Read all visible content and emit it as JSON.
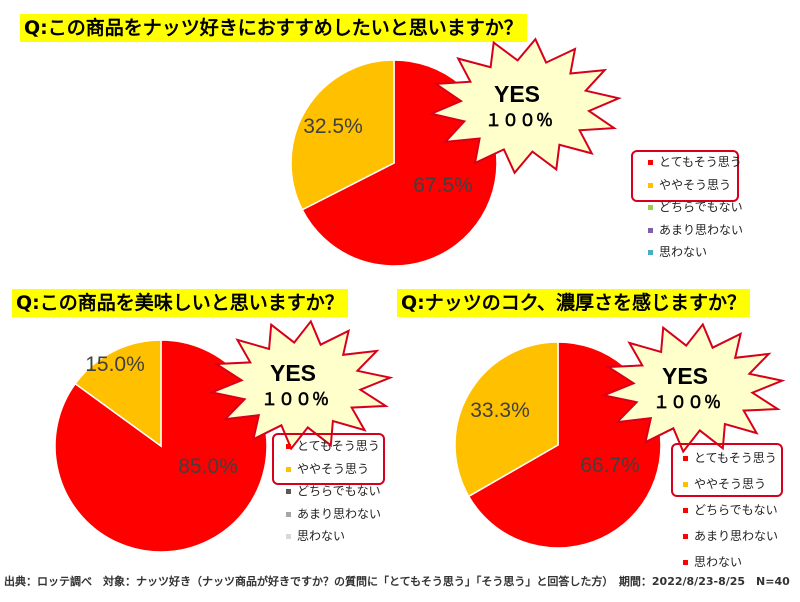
{
  "footnote": "出典：ロッテ調べ　対象：ナッツ好き（ナッツ商品が好きですか？の質問に「とてもそう思う」「そう思う」と回答した方）　期間：2022/8/23-8/25　N=40",
  "chart_data": [
    {
      "type": "pie",
      "title": "Q:この商品をナッツ好きにおすすめしたいと思いますか？",
      "categories": [
        "とてもそう思う",
        "ややそう思う",
        "どちらでもない",
        "あまり思わない",
        "思わない"
      ],
      "values": [
        67.5,
        32.5,
        0,
        0,
        0
      ],
      "labels": [
        "67.5%",
        "32.5%"
      ],
      "colors": [
        "#ff0000",
        "#ffc000",
        "#92d050",
        "#7f5fa8",
        "#4bacc6"
      ],
      "badge": {
        "main": "YES",
        "sub": "１００％"
      }
    },
    {
      "type": "pie",
      "title": "Q:この商品を美味しいと思いますか？",
      "categories": [
        "とてもそう思う",
        "ややそう思う",
        "どちらでもない",
        "あまり思わない",
        "思わない"
      ],
      "values": [
        85.0,
        15.0,
        0,
        0,
        0
      ],
      "labels": [
        "85.0%",
        "15.0%"
      ],
      "colors": [
        "#ff0000",
        "#ffc000",
        "#595959",
        "#a6a6a6",
        "#d9d9d9"
      ],
      "badge": {
        "main": "YES",
        "sub": "１００％"
      }
    },
    {
      "type": "pie",
      "title": "Q:ナッツのコク、濃厚さを感じますか？",
      "categories": [
        "とてもそう思う",
        "ややそう思う",
        "どちらでもない",
        "あまり思わない",
        "思わない"
      ],
      "values": [
        66.7,
        33.3,
        0,
        0,
        0
      ],
      "labels": [
        "66.7%",
        "33.3%"
      ],
      "colors": [
        "#ff0000",
        "#ffc000",
        "#ff0000",
        "#ff0000",
        "#ff0000"
      ],
      "badge": {
        "main": "YES",
        "sub": "１００％"
      }
    }
  ]
}
